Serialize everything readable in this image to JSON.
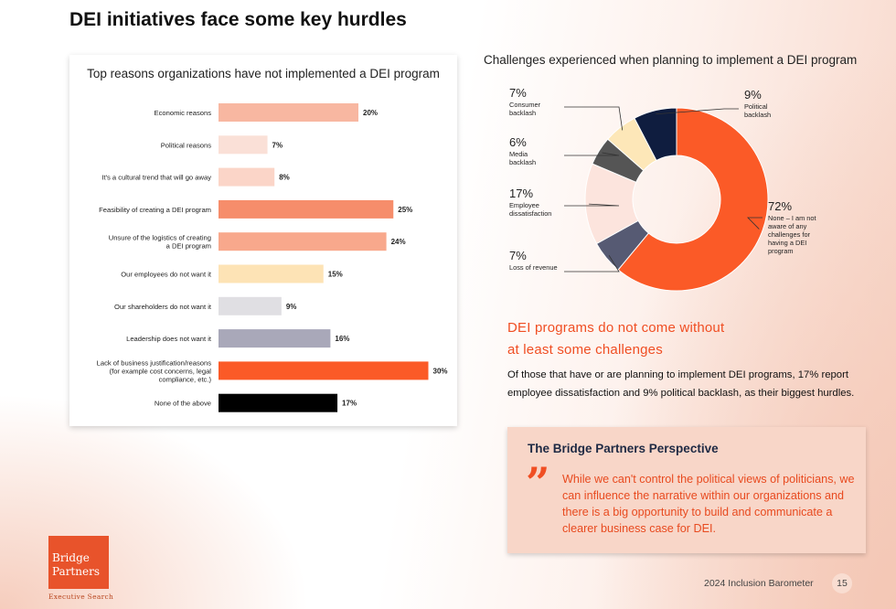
{
  "page": {
    "title": "DEI initiatives face some key hurdles",
    "footer": "2024 Inclusion Barometer",
    "page_number": "15"
  },
  "colors": {
    "accent": "#f04e23",
    "navy": "#1f2a44"
  },
  "chart_data": [
    {
      "type": "bar",
      "orientation": "horizontal",
      "title": "Top reasons organizations have not implemented a DEI program",
      "categories": [
        [
          "Economic reasons"
        ],
        [
          "Political reasons"
        ],
        [
          "It's a cultural trend that will go away"
        ],
        [
          "Feasibility of creating a DEI program"
        ],
        [
          "Unsure of the logistics of creating",
          "a DEI program"
        ],
        [
          "Our employees do not want it"
        ],
        [
          "Our shareholders do not want it"
        ],
        [
          "Leadership does not want it"
        ],
        [
          "Lack of business justification/reasons",
          "(for example cost concerns, legal",
          "compliance, etc.)"
        ],
        [
          "None of the above"
        ]
      ],
      "values": [
        20,
        7,
        8,
        25,
        24,
        15,
        9,
        16,
        30,
        17
      ],
      "value_labels": [
        "20%",
        "7%",
        "8%",
        "25%",
        "24%",
        "15%",
        "9%",
        "16%",
        "30%",
        "17%"
      ],
      "bar_colors": [
        "#f8b7a1",
        "#fae0d7",
        "#fbd5c8",
        "#f68d6b",
        "#f8a88c",
        "#fde3b5",
        "#e0dfe3",
        "#a9a8b9",
        "#fb5a27",
        "#000000"
      ],
      "xlim": [
        0,
        30
      ],
      "xlabel": "",
      "ylabel": ""
    },
    {
      "type": "pie",
      "style": "donut",
      "title": "Challenges experienced when planning to implement a DEI program",
      "slices": [
        {
          "label": "None – I am not aware of any challenges for having a DEI program",
          "label_lines": [
            "None – I am not",
            "aware of any",
            "challenges for",
            "having a DEI",
            "program"
          ],
          "value": 72,
          "pct": "72%",
          "color": "#fb5a27"
        },
        {
          "label": "Loss of revenue",
          "label_lines": [
            "Loss of revenue"
          ],
          "value": 7,
          "pct": "7%",
          "color": "#565a73"
        },
        {
          "label": "Employee dissatisfaction",
          "label_lines": [
            "Employee",
            "dissatisfaction"
          ],
          "value": 17,
          "pct": "17%",
          "color": "#fce4dd"
        },
        {
          "label": "Media backlash",
          "label_lines": [
            "Media",
            "backlash"
          ],
          "value": 6,
          "pct": "6%",
          "color": "#555555"
        },
        {
          "label": "Consumer backlash",
          "label_lines": [
            "Consumer",
            "backlash"
          ],
          "value": 7,
          "pct": "7%",
          "color": "#fde7b8"
        },
        {
          "label": "Political backlash",
          "label_lines": [
            "Political",
            "backlash"
          ],
          "value": 9,
          "pct": "9%",
          "color": "#0f1d3f"
        }
      ]
    }
  ],
  "insight": {
    "headline_line1": "DEI programs do not come without",
    "headline_line2": "at least some challenges",
    "body": "Of those that have or are planning to implement DEI programs, 17% report employee dissatisfaction and 9% political backlash, as their biggest hurdles."
  },
  "perspective": {
    "title": "The Bridge Partners Perspective",
    "quote_mark": "”",
    "quote": "While we can't control the political views of politicians, we can influence the narrative within our organizations and there is a big opportunity to build and communicate a clearer business case for DEI."
  },
  "logo": {
    "line1": "Bridge",
    "line2": "Partners",
    "tagline": "Executive Search"
  }
}
